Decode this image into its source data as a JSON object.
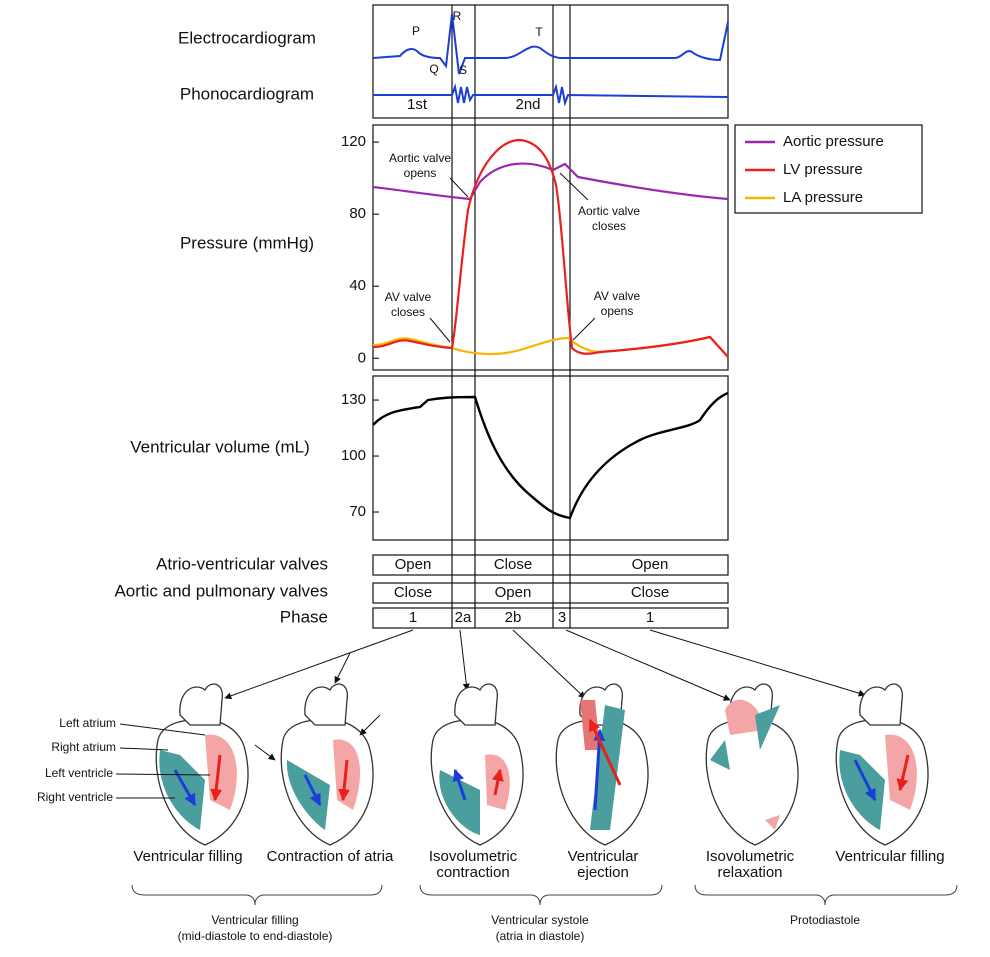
{
  "left_labels": {
    "ecg": "Electrocardiogram",
    "phono": "Phonocardiogram",
    "pressure": "Pressure (mmHg)",
    "volume": "Ventricular volume (mL)"
  },
  "ecg_waves": {
    "p": "P",
    "r": "R",
    "q": "Q",
    "s": "S",
    "t": "T"
  },
  "heart_sounds": [
    "1st",
    "2nd"
  ],
  "pressure_axis": {
    "ylim": [
      -6.5,
      129.5
    ],
    "yticks": [
      0,
      40,
      80,
      120
    ]
  },
  "volume_axis": {
    "ylim": [
      55,
      142.9
    ],
    "yticks": [
      70,
      100,
      130
    ]
  },
  "legend": [
    {
      "name": "Aortic pressure",
      "color": "#9c27b0"
    },
    {
      "name": "LV pressure",
      "color": "#e8201e"
    },
    {
      "name": "LA pressure",
      "color": "#f7b500"
    }
  ],
  "annotations": [
    [
      "Aortic valve",
      "opens"
    ],
    [
      "Aortic valve",
      "closes"
    ],
    [
      "AV valve",
      "closes"
    ],
    [
      "AV valve",
      "opens"
    ]
  ],
  "valve_rows": [
    {
      "label": "Atrio-ventricular valves",
      "cells": [
        "Open",
        "Close",
        "Open"
      ]
    },
    {
      "label": "Aortic and pulmonary valves",
      "cells": [
        "Close",
        "Open",
        "Close"
      ]
    }
  ],
  "phase": {
    "label": "Phase",
    "cells": [
      "1",
      "2a",
      "2b",
      "3",
      "1"
    ]
  },
  "anatomy_labels": [
    "Left atrium",
    "Right atrium",
    "Left ventricle",
    "Right ventricle"
  ],
  "stages": [
    [
      "Ventricular filling"
    ],
    [
      "Contraction of atria"
    ],
    [
      "Isovolumetric",
      "contraction"
    ],
    [
      "Ventricular",
      "ejection"
    ],
    [
      "Isovolumetric",
      "relaxation"
    ],
    [
      "Ventricular filling"
    ]
  ],
  "groups": [
    [
      "Ventricular filling",
      "(mid-diastole to end-diastole)"
    ],
    [
      "Ventricular systole",
      "(atria in diastole)"
    ],
    [
      "Protodiastole"
    ]
  ]
}
